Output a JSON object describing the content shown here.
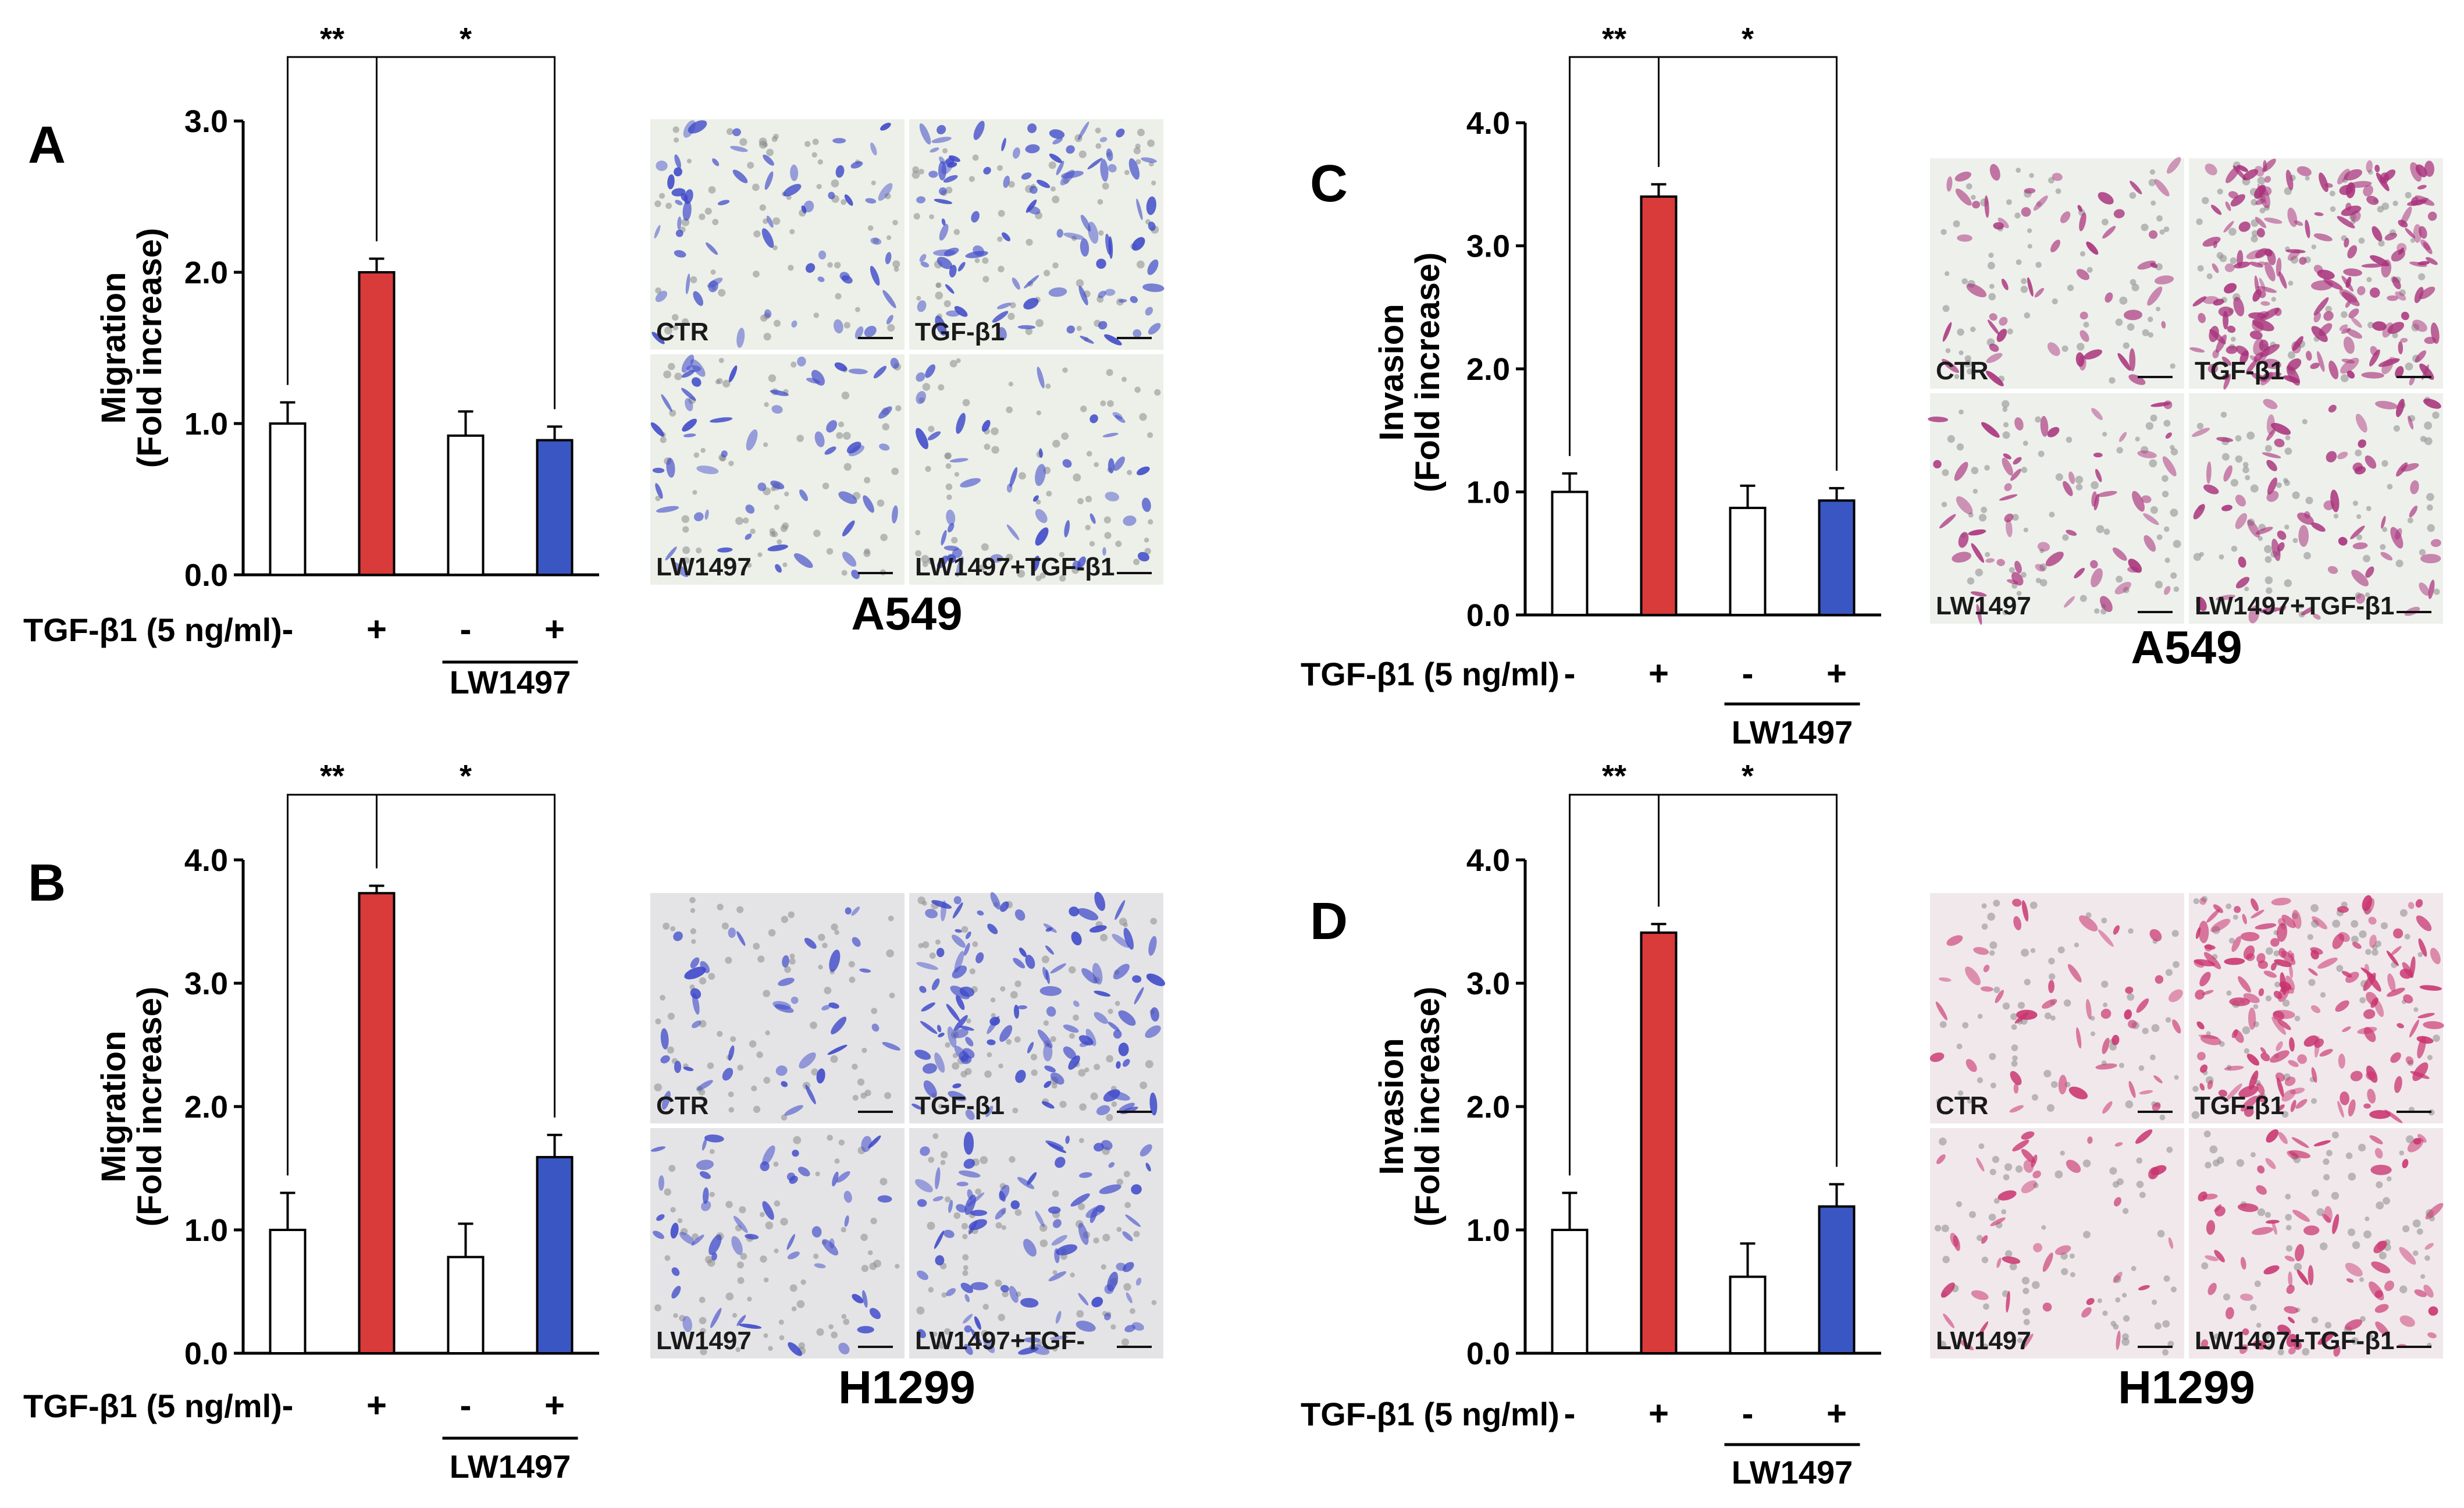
{
  "chart_data": [
    {
      "panel": "A",
      "type": "bar",
      "ylabel": "Migration",
      "ylabel2": "(Fold increase)",
      "ylim": [
        0,
        3.0
      ],
      "yticks": [
        "0.0",
        "1.0",
        "2.0",
        "3.0"
      ],
      "tick_values": [
        0,
        1,
        2,
        3
      ],
      "categories": [
        "-",
        "+",
        "-",
        "+"
      ],
      "values": [
        1.0,
        2.0,
        0.92,
        0.89
      ],
      "errors": [
        0.14,
        0.09,
        0.16,
        0.09
      ],
      "colors": [
        "#ffffff",
        "#d93a3a",
        "#ffffff",
        "#3a56c2"
      ],
      "treatment_label": "TGF-β1 (5 ng/ml)",
      "group_label": "LW1497",
      "significance": [
        {
          "from": 0,
          "to": 1,
          "label": "**"
        },
        {
          "from": 1,
          "to": 3,
          "label": "*"
        }
      ]
    },
    {
      "panel": "B",
      "type": "bar",
      "ylabel": "Migration",
      "ylabel2": "(Fold increase)",
      "ylim": [
        0,
        4.0
      ],
      "yticks": [
        "0.0",
        "1.0",
        "2.0",
        "3.0",
        "4.0"
      ],
      "tick_values": [
        0,
        1,
        2,
        3,
        4
      ],
      "categories": [
        "-",
        "+",
        "-",
        "+"
      ],
      "values": [
        1.0,
        3.73,
        0.78,
        1.59
      ],
      "errors": [
        0.3,
        0.06,
        0.27,
        0.18
      ],
      "colors": [
        "#ffffff",
        "#d93a3a",
        "#ffffff",
        "#3a56c2"
      ],
      "treatment_label": "TGF-β1 (5 ng/ml)",
      "group_label": "LW1497",
      "significance": [
        {
          "from": 0,
          "to": 1,
          "label": "**"
        },
        {
          "from": 1,
          "to": 3,
          "label": "*"
        }
      ]
    },
    {
      "panel": "C",
      "type": "bar",
      "ylabel": "Invasion",
      "ylabel2": "(Fold increase)",
      "ylim": [
        0,
        4.0
      ],
      "yticks": [
        "0.0",
        "1.0",
        "2.0",
        "3.0",
        "4.0"
      ],
      "tick_values": [
        0,
        1,
        2,
        3,
        4
      ],
      "categories": [
        "-",
        "+",
        "-",
        "+"
      ],
      "values": [
        1.0,
        3.4,
        0.87,
        0.93
      ],
      "errors": [
        0.15,
        0.1,
        0.18,
        0.1
      ],
      "colors": [
        "#ffffff",
        "#d93a3a",
        "#ffffff",
        "#3a56c2"
      ],
      "treatment_label": "TGF-β1 (5 ng/ml)",
      "group_label": "LW1497",
      "significance": [
        {
          "from": 0,
          "to": 1,
          "label": "**"
        },
        {
          "from": 1,
          "to": 3,
          "label": "*"
        }
      ]
    },
    {
      "panel": "D",
      "type": "bar",
      "ylabel": "Invasion",
      "ylabel2": "(Fold increase)",
      "ylim": [
        0,
        4.0
      ],
      "yticks": [
        "0.0",
        "1.0",
        "2.0",
        "3.0",
        "4.0"
      ],
      "tick_values": [
        0,
        1,
        2,
        3,
        4
      ],
      "categories": [
        "-",
        "+",
        "-",
        "+"
      ],
      "values": [
        1.0,
        3.41,
        0.62,
        1.19
      ],
      "errors": [
        0.3,
        0.07,
        0.27,
        0.18
      ],
      "colors": [
        "#ffffff",
        "#d93a3a",
        "#ffffff",
        "#3a56c2"
      ],
      "treatment_label": "TGF-β1 (5 ng/ml)",
      "group_label": "LW1497",
      "significance": [
        {
          "from": 0,
          "to": 1,
          "label": "**"
        },
        {
          "from": 1,
          "to": 3,
          "label": "*"
        }
      ]
    }
  ],
  "micrographs": [
    {
      "panel": "A",
      "cell_line": "A549",
      "tint": "#3d48c9",
      "bg": "#ecf0e8",
      "labels": [
        "CTR",
        "TGF-β1",
        "LW1497",
        "LW1497+TGF-β1"
      ],
      "density": [
        60,
        95,
        55,
        45
      ],
      "scale": "100 µm"
    },
    {
      "panel": "B",
      "cell_line": "H1299",
      "tint": "#3d48c9",
      "bg": "#e4e4e6",
      "labels": [
        "CTR",
        "TGF-β1",
        "LW1497",
        "LW1497+TGF-"
      ],
      "density": [
        40,
        110,
        50,
        85
      ],
      "scale": "100 µm"
    },
    {
      "panel": "C",
      "cell_line": "A549",
      "tint": "#a8307a",
      "bg": "#eef0ec",
      "labels": [
        "CTR",
        "TGF-β1",
        "LW1497",
        "LW1497+TGF-β1"
      ],
      "density": [
        55,
        200,
        60,
        70
      ],
      "scale": "100 µm"
    },
    {
      "panel": "D",
      "cell_line": "H1299",
      "tint": "#c9336e",
      "bg": "#f1e8ec",
      "labels": [
        "CTR",
        "TGF-β1",
        "LW1497",
        "LW1497+TGF-β1"
      ],
      "density": [
        45,
        160,
        40,
        75
      ],
      "scale": "100 µm"
    }
  ]
}
